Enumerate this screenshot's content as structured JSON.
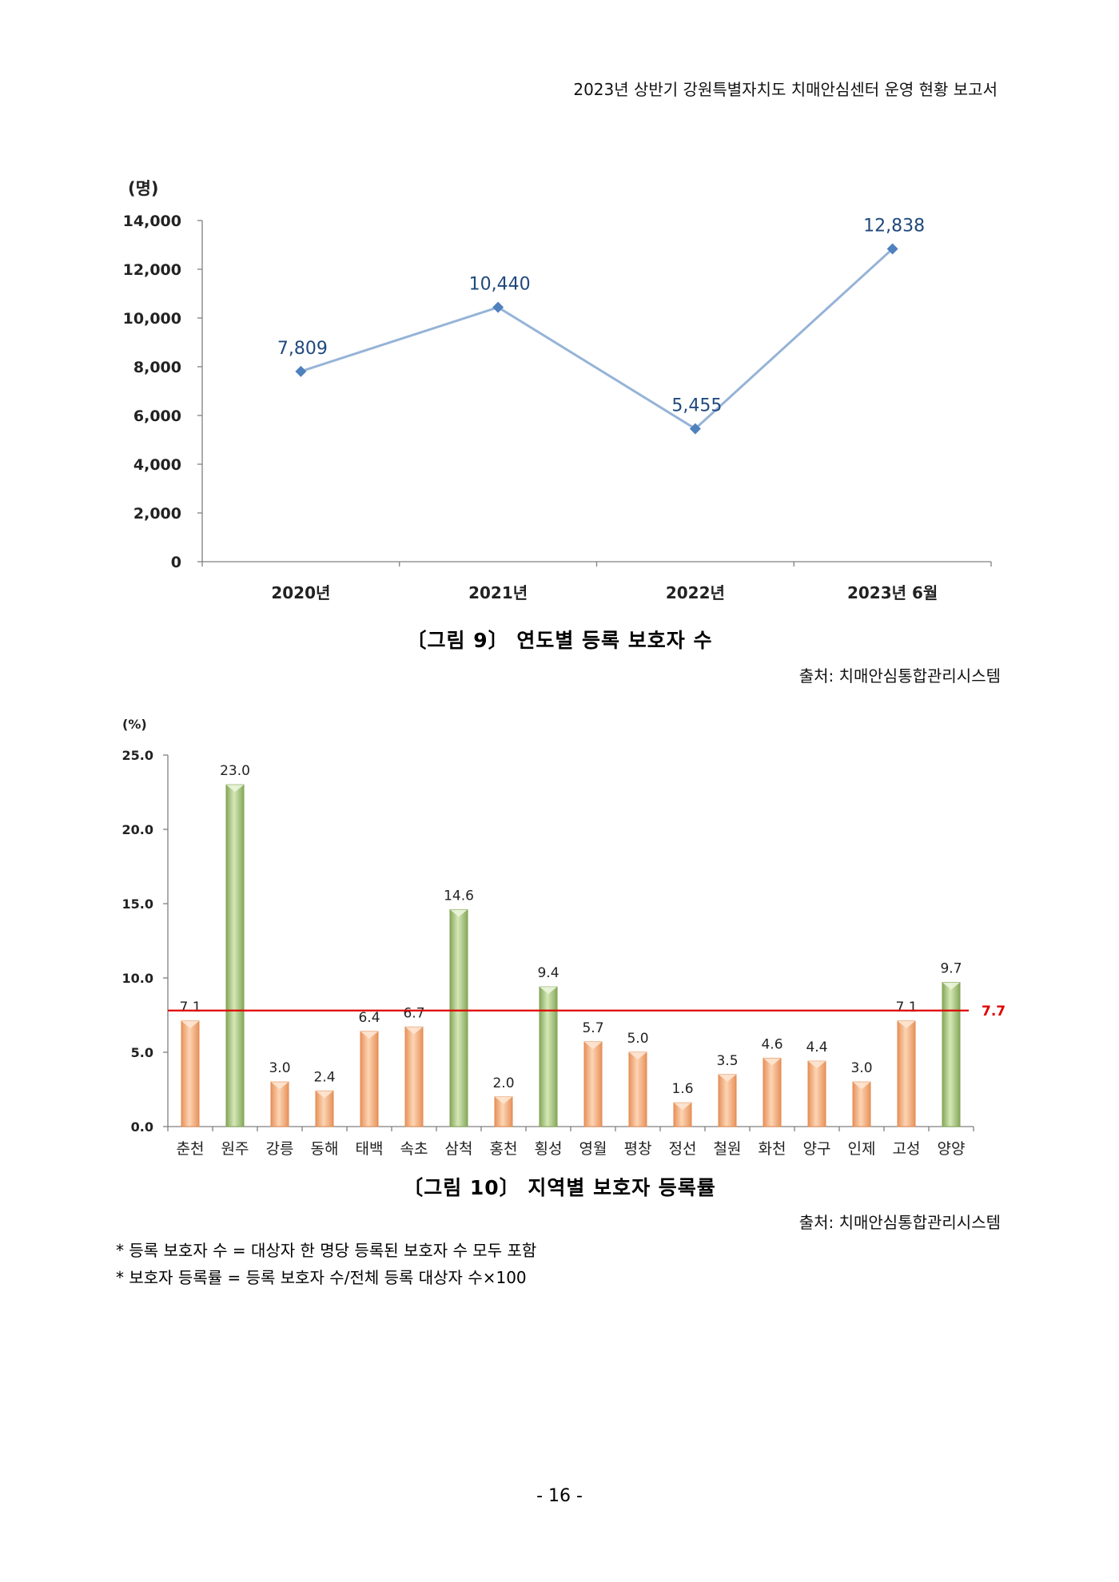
{
  "header": {
    "title": "2023년 상반기 강원특별자치도 치매안심센터 운영 현황 보고서"
  },
  "figures": [
    {
      "caption": "〔그림 9〕 연도별 등록 보호자 수",
      "source": "출처: 치매안심통합관리시스템"
    },
    {
      "caption": "〔그림 10〕 지역별 보호자 등록률",
      "source": "출처: 치매안심통합관리시스템"
    }
  ],
  "notes": [
    "* 등록 보호자 수 = 대상자 한 명당 등록된 보호자 수 모두 포함",
    "* 보호자 등록률 = 등록 보호자 수/전체 등록 대상자 수×100"
  ],
  "page_number": "- 16 -",
  "chart_data": [
    {
      "type": "line",
      "ylabel": "(명)",
      "x": [
        "2020년",
        "2021년",
        "2022년",
        "2023년 6월"
      ],
      "values": [
        7809,
        10440,
        5455,
        12838
      ],
      "data_labels": [
        "7,809",
        "10,440",
        "5,455",
        "12,838"
      ],
      "ylim": [
        0,
        14000
      ],
      "yticks": [
        0,
        2000,
        4000,
        6000,
        8000,
        10000,
        12000,
        14000
      ],
      "ytick_labels": [
        "0",
        "2,000",
        "4,000",
        "6,000",
        "8,000",
        "10,000",
        "12,000",
        "14,000"
      ],
      "line_color": "#95b3d7",
      "marker_color": "#4f81bd",
      "label_color": "#1f497d",
      "grid": false
    },
    {
      "type": "bar",
      "ylabel": "(%)",
      "categories": [
        "춘천",
        "원주",
        "강릉",
        "동해",
        "태백",
        "속초",
        "삼척",
        "홍천",
        "횡성",
        "영월",
        "평창",
        "정선",
        "철원",
        "화천",
        "양구",
        "인제",
        "고성",
        "양양"
      ],
      "values": [
        7.1,
        23.0,
        3.0,
        2.4,
        6.4,
        6.7,
        14.6,
        2.0,
        9.4,
        5.7,
        5.0,
        1.6,
        3.5,
        4.6,
        4.4,
        3.0,
        7.1,
        9.7
      ],
      "data_labels": [
        "7.1",
        "23.0",
        "3.0",
        "2.4",
        "6.4",
        "6.7",
        "14.6",
        "2.0",
        "9.4",
        "5.7",
        "5.0",
        "1.6",
        "3.5",
        "4.6",
        "4.4",
        "3.0",
        "7.1",
        "9.7"
      ],
      "highlighted": [
        false,
        true,
        false,
        false,
        false,
        false,
        true,
        false,
        true,
        false,
        false,
        false,
        false,
        false,
        false,
        false,
        false,
        true
      ],
      "ylim": [
        0,
        25
      ],
      "yticks": [
        0,
        5,
        10,
        15,
        20,
        25
      ],
      "ytick_labels": [
        "0.0",
        "5.0",
        "10.0",
        "15.0",
        "20.0",
        "25.0"
      ],
      "reference_line": {
        "value": 7.7,
        "label": "7.7",
        "color": "#e00000"
      },
      "colors": {
        "default": "#f6b98a",
        "highlight": "#a9c878"
      },
      "grid": false
    }
  ]
}
